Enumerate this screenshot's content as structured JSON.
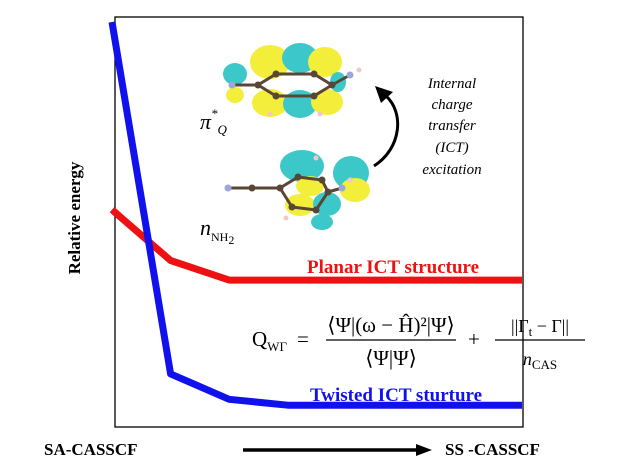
{
  "colors": {
    "planar": "#ee1111",
    "twisted": "#1111ee",
    "lobe_yellow": "#f2ee3a",
    "lobe_cyan": "#3cc8c8",
    "atom_carbon": "#5a4636",
    "atom_h": "#f0c8c8",
    "atom_n": "#9aa8d8"
  },
  "chart_data": {
    "type": "line",
    "ylabel": "Relative energy",
    "x_start_label": "SA-CASSCF",
    "x_end_label": "SS -CASSCF",
    "x": [
      0,
      1,
      2,
      3,
      4,
      5,
      6,
      7
    ],
    "ylim": [
      0,
      1
    ],
    "grid": false,
    "series": [
      {
        "name": "Planar ICT structure",
        "color": "#ee1111",
        "values": [
          0.52,
          0.39,
          0.34,
          0.34,
          0.34,
          0.34,
          0.34,
          0.34
        ]
      },
      {
        "name": "Twisted ICT sturture",
        "color": "#1111ee",
        "values": [
          1.0,
          0.1,
          0.035,
          0.02,
          0.02,
          0.02,
          0.02,
          0.02
        ]
      }
    ]
  },
  "annotations": {
    "excitation_lines": [
      "Internal",
      "charge",
      "transfer",
      "(ICT)",
      "excitation"
    ],
    "orbital_top": {
      "symbol": "π",
      "sup": "*",
      "sub": "Q"
    },
    "orbital_bottom": {
      "symbol": "n",
      "sub": "NH",
      "sub2": "2"
    }
  },
  "equation": {
    "lhs_main": "Q",
    "lhs_sub": "WΓ",
    "equals": "=",
    "term1_numerator": "⟨Ψ|(ω − Ĥ)²|Ψ⟩",
    "term1_denominator": "⟨Ψ|Ψ⟩",
    "plus": "+",
    "term2_numerator": "||Γ",
    "term2_numerator_sub": "t",
    "term2_numerator_rest": " − Γ||",
    "term2_denominator_main": "n",
    "term2_denominator_sub": "CAS"
  }
}
